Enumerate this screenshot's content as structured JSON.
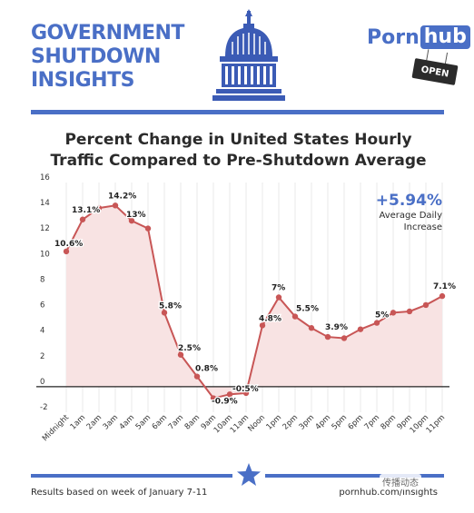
{
  "header": {
    "title_lines": [
      "GOVERNMENT",
      "SHUTDOWN",
      "INSIGHTS"
    ],
    "logo_left": "Porn",
    "logo_right": "hub",
    "sign": "OPEN",
    "icon": "capitol-dome-icon"
  },
  "chart_title_lines": [
    "Percent Change in United States Hourly",
    "Traffic Compared to Pre-Shutdown Average"
  ],
  "callout": {
    "value": "+5.94%",
    "label_lines": [
      "Average Daily",
      "Increase"
    ]
  },
  "footer": {
    "note": "Results based on week of January 7-11",
    "url": "pornhub.com/insights",
    "watermark": "传播动态"
  },
  "colors": {
    "brand_blue": "#4a6fc6",
    "line_red": "#c85656",
    "fill_pink": "#f8e3e3",
    "text_dark": "#2b2b2b"
  },
  "chart_data": {
    "type": "area",
    "title": "Percent Change in United States Hourly Traffic Compared to Pre-Shutdown Average",
    "xlabel": "",
    "ylabel": "",
    "categories": [
      "Midnight",
      "1am",
      "2am",
      "3am",
      "4am",
      "5am",
      "6am",
      "7am",
      "8am",
      "9am",
      "10am",
      "11am",
      "Noon",
      "1pm",
      "2pm",
      "3pm",
      "4pm",
      "5pm",
      "6pm",
      "7pm",
      "8pm",
      "9pm",
      "10pm",
      "11pm"
    ],
    "values": [
      10.6,
      13.1,
      14.0,
      14.2,
      13.0,
      12.4,
      5.8,
      2.5,
      0.8,
      -0.9,
      -0.6,
      -0.5,
      4.8,
      7.0,
      5.5,
      4.6,
      3.9,
      3.8,
      4.5,
      5.0,
      5.8,
      5.9,
      6.4,
      7.1
    ],
    "data_labels": [
      {
        "index": 0,
        "text": "10.6%"
      },
      {
        "index": 1,
        "text": "13.1%"
      },
      {
        "index": 3,
        "text": "14.2%"
      },
      {
        "index": 4,
        "text": "13%"
      },
      {
        "index": 6,
        "text": "5.8%"
      },
      {
        "index": 7,
        "text": "2.5%"
      },
      {
        "index": 8,
        "text": "0.8%"
      },
      {
        "index": 9,
        "text": "-0.9%"
      },
      {
        "index": 11,
        "text": "-0.5%"
      },
      {
        "index": 12,
        "text": "4.8%"
      },
      {
        "index": 13,
        "text": "7%"
      },
      {
        "index": 14,
        "text": "5.5%"
      },
      {
        "index": 16,
        "text": "3.9%"
      },
      {
        "index": 19,
        "text": "5%"
      },
      {
        "index": 23,
        "text": "7.1%"
      }
    ],
    "y_ticks": [
      -2,
      0,
      2,
      4,
      6,
      8,
      10,
      12,
      14,
      16
    ],
    "ylim": [
      -2,
      16
    ],
    "grid": "vertical"
  }
}
